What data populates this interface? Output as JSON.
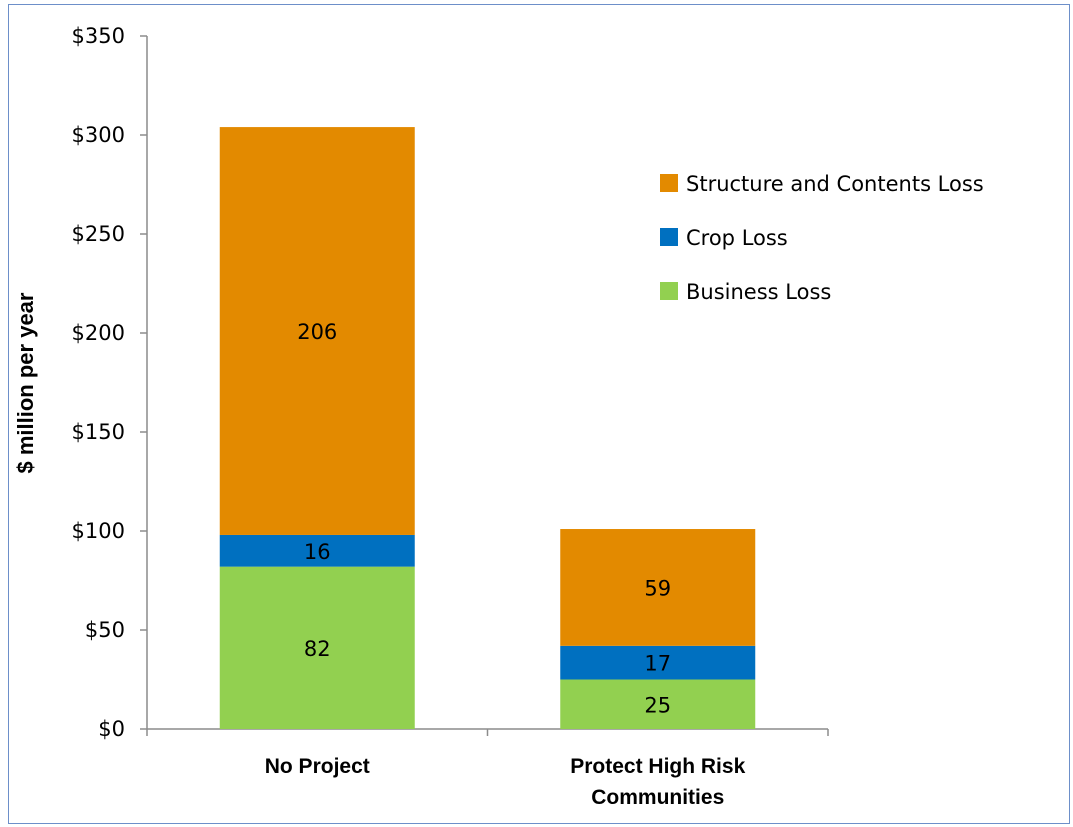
{
  "chart_data": {
    "type": "bar",
    "stacked": true,
    "ylabel": "$ million per year",
    "ylim": [
      0,
      350
    ],
    "y_ticks": [
      "$0",
      "$50",
      "$100",
      "$150",
      "$200",
      "$250",
      "$300",
      "$350"
    ],
    "y_tick_values": [
      0,
      50,
      100,
      150,
      200,
      250,
      300,
      350
    ],
    "categories": [
      [
        "No Project"
      ],
      [
        "Protect High Risk",
        "Communities"
      ]
    ],
    "series": [
      {
        "name": "Business Loss",
        "color": "#92d050",
        "values": [
          82,
          25
        ]
      },
      {
        "name": "Crop Loss",
        "color": "#0070c0",
        "values": [
          16,
          17
        ]
      },
      {
        "name": "Structure and Contents Loss",
        "color": "#e38a00",
        "values": [
          206,
          59
        ]
      }
    ],
    "legend_order": [
      "Structure and Contents Loss",
      "Crop Loss",
      "Business Loss"
    ],
    "legend_position": "right",
    "grid": false
  }
}
